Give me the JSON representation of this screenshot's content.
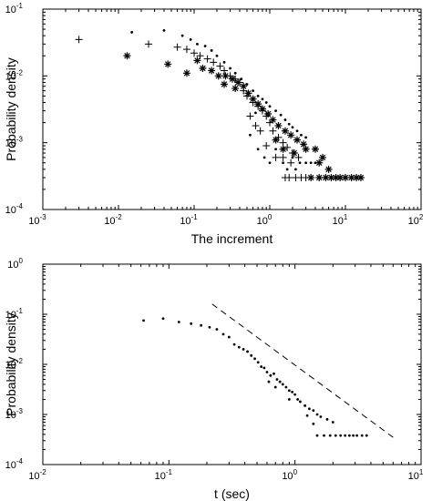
{
  "chart_data": [
    {
      "type": "scatter",
      "xlabel": "The increment",
      "ylabel": "Probability density",
      "xscale": "log",
      "yscale": "log",
      "xlim": [
        0.001,
        100
      ],
      "ylim": [
        0.0001,
        0.1
      ],
      "x_ticks": [
        {
          "value": 0.001,
          "base": "10",
          "exp": "-3"
        },
        {
          "value": 0.01,
          "base": "10",
          "exp": "-2"
        },
        {
          "value": 0.1,
          "base": "10",
          "exp": "-1"
        },
        {
          "value": 1,
          "base": "10",
          "exp": "0"
        },
        {
          "value": 10,
          "base": "10",
          "exp": "1"
        },
        {
          "value": 100,
          "base": "10",
          "exp": "2"
        }
      ],
      "y_ticks": [
        {
          "value": 0.0001,
          "base": "10",
          "exp": "-4"
        },
        {
          "value": 0.001,
          "base": "10",
          "exp": "-3"
        },
        {
          "value": 0.01,
          "base": "10",
          "exp": "-2"
        },
        {
          "value": 0.1,
          "base": "10",
          "exp": "-1"
        }
      ],
      "series": [
        {
          "marker": "dot",
          "points": [
            [
              0.015,
              0.045
            ],
            [
              0.04,
              0.048
            ],
            [
              0.07,
              0.04
            ],
            [
              0.09,
              0.035
            ],
            [
              0.11,
              0.03
            ],
            [
              0.14,
              0.028
            ],
            [
              0.17,
              0.024
            ],
            [
              0.2,
              0.02
            ],
            [
              0.25,
              0.016
            ],
            [
              0.3,
              0.013
            ],
            [
              0.35,
              0.011
            ],
            [
              0.42,
              0.009
            ],
            [
              0.5,
              0.0075
            ],
            [
              0.6,
              0.006
            ],
            [
              0.7,
              0.005
            ],
            [
              0.8,
              0.0045
            ],
            [
              0.9,
              0.004
            ],
            [
              1.0,
              0.0035
            ],
            [
              1.2,
              0.003
            ],
            [
              1.4,
              0.0026
            ],
            [
              1.6,
              0.0022
            ],
            [
              1.8,
              0.0019
            ],
            [
              2.0,
              0.0017
            ],
            [
              2.3,
              0.0015
            ],
            [
              2.6,
              0.0013
            ],
            [
              3.0,
              0.0012
            ],
            [
              0.55,
              0.0013
            ],
            [
              0.7,
              0.0008
            ],
            [
              0.85,
              0.0006
            ],
            [
              1.0,
              0.0005
            ],
            [
              1.2,
              0.0008
            ],
            [
              1.5,
              0.0005
            ],
            [
              1.7,
              0.0004
            ],
            [
              2.0,
              0.0006
            ],
            [
              2.5,
              0.0005
            ],
            [
              3.0,
              0.0005
            ],
            [
              3.5,
              0.0005
            ],
            [
              4.0,
              0.0005
            ],
            [
              2.2,
              0.0004
            ],
            [
              0.65,
              0.0028
            ]
          ]
        },
        {
          "marker": "plus",
          "points": [
            [
              0.003,
              0.035
            ],
            [
              0.025,
              0.03
            ],
            [
              0.06,
              0.027
            ],
            [
              0.08,
              0.025
            ],
            [
              0.1,
              0.022
            ],
            [
              0.12,
              0.02
            ],
            [
              0.15,
              0.018
            ],
            [
              0.18,
              0.016
            ],
            [
              0.22,
              0.014
            ],
            [
              0.25,
              0.012
            ],
            [
              0.3,
              0.01
            ],
            [
              0.35,
              0.009
            ],
            [
              0.4,
              0.008
            ],
            [
              0.45,
              0.006
            ],
            [
              0.5,
              0.005
            ],
            [
              0.6,
              0.004
            ],
            [
              0.7,
              0.0035
            ],
            [
              0.8,
              0.003
            ],
            [
              0.9,
              0.0025
            ],
            [
              1.0,
              0.002
            ],
            [
              0.55,
              0.0025
            ],
            [
              0.65,
              0.0018
            ],
            [
              0.75,
              0.0015
            ],
            [
              1.1,
              0.0015
            ],
            [
              1.3,
              0.0012
            ],
            [
              1.5,
              0.001
            ],
            [
              1.7,
              0.00085
            ],
            [
              2.0,
              0.0007
            ],
            [
              2.4,
              0.0006
            ],
            [
              1.2,
              0.0006
            ],
            [
              1.5,
              0.0006
            ],
            [
              1.9,
              0.0005
            ],
            [
              1.6,
              0.0003
            ],
            [
              1.8,
              0.0003
            ],
            [
              2.2,
              0.0003
            ],
            [
              2.6,
              0.0003
            ],
            [
              3.0,
              0.0003
            ],
            [
              0.9,
              0.0009
            ]
          ]
        },
        {
          "marker": "star",
          "points": [
            [
              0.013,
              0.02
            ],
            [
              0.045,
              0.015
            ],
            [
              0.11,
              0.017
            ],
            [
              0.13,
              0.013
            ],
            [
              0.17,
              0.012
            ],
            [
              0.21,
              0.01
            ],
            [
              0.26,
              0.01
            ],
            [
              0.32,
              0.009
            ],
            [
              0.38,
              0.008
            ],
            [
              0.45,
              0.007
            ],
            [
              0.52,
              0.0055
            ],
            [
              0.6,
              0.0045
            ],
            [
              0.7,
              0.0038
            ],
            [
              0.8,
              0.0032
            ],
            [
              0.95,
              0.0027
            ],
            [
              1.1,
              0.0022
            ],
            [
              1.3,
              0.0018
            ],
            [
              1.6,
              0.0015
            ],
            [
              1.9,
              0.0013
            ],
            [
              2.3,
              0.0011
            ],
            [
              2.8,
              0.00095
            ],
            [
              1.5,
              0.0008
            ],
            [
              2.1,
              0.0007
            ],
            [
              3.0,
              0.0008
            ],
            [
              4.0,
              0.0008
            ],
            [
              5.0,
              0.0006
            ],
            [
              4.5,
              0.0005
            ],
            [
              6.0,
              0.0004
            ],
            [
              3.5,
              0.0003
            ],
            [
              4.5,
              0.0003
            ],
            [
              5.5,
              0.0003
            ],
            [
              6.5,
              0.0003
            ],
            [
              7.5,
              0.0003
            ],
            [
              8.5,
              0.0003
            ],
            [
              10.0,
              0.0003
            ],
            [
              12.0,
              0.0003
            ],
            [
              14.0,
              0.0003
            ],
            [
              16.0,
              0.0003
            ],
            [
              0.35,
              0.0065
            ],
            [
              1.2,
              0.0011
            ],
            [
              0.08,
              0.011
            ],
            [
              0.25,
              0.0075
            ]
          ]
        }
      ]
    },
    {
      "type": "scatter",
      "xlabel": "t (sec)",
      "ylabel": "Probability density",
      "xscale": "log",
      "yscale": "log",
      "xlim": [
        0.01,
        10
      ],
      "ylim": [
        0.0001,
        1
      ],
      "x_ticks": [
        {
          "value": 0.01,
          "base": "10",
          "exp": "-2"
        },
        {
          "value": 0.1,
          "base": "10",
          "exp": "-1"
        },
        {
          "value": 1,
          "base": "10",
          "exp": "0"
        },
        {
          "value": 10,
          "base": "10",
          "exp": "1"
        }
      ],
      "y_ticks": [
        {
          "value": 0.0001,
          "base": "10",
          "exp": "-4"
        },
        {
          "value": 0.001,
          "base": "10",
          "exp": "-3"
        },
        {
          "value": 0.01,
          "base": "10",
          "exp": "-2"
        },
        {
          "value": 0.1,
          "base": "10",
          "exp": "-1"
        },
        {
          "value": 1,
          "base": "10",
          "exp": "0"
        }
      ],
      "series": [
        {
          "marker": "dot",
          "points": [
            [
              0.063,
              0.075
            ],
            [
              0.09,
              0.082
            ],
            [
              0.12,
              0.07
            ],
            [
              0.15,
              0.065
            ],
            [
              0.18,
              0.06
            ],
            [
              0.21,
              0.055
            ],
            [
              0.24,
              0.05
            ],
            [
              0.27,
              0.04
            ],
            [
              0.3,
              0.035
            ],
            [
              0.33,
              0.025
            ],
            [
              0.36,
              0.022
            ],
            [
              0.39,
              0.02
            ],
            [
              0.42,
              0.018
            ],
            [
              0.45,
              0.015
            ],
            [
              0.48,
              0.013
            ],
            [
              0.51,
              0.011
            ],
            [
              0.54,
              0.009
            ],
            [
              0.57,
              0.0085
            ],
            [
              0.6,
              0.007
            ],
            [
              0.64,
              0.006
            ],
            [
              0.68,
              0.0065
            ],
            [
              0.72,
              0.005
            ],
            [
              0.76,
              0.0045
            ],
            [
              0.8,
              0.004
            ],
            [
              0.85,
              0.0035
            ],
            [
              0.9,
              0.003
            ],
            [
              0.95,
              0.0028
            ],
            [
              1.0,
              0.0025
            ],
            [
              1.05,
              0.002
            ],
            [
              1.1,
              0.0018
            ],
            [
              1.2,
              0.0015
            ],
            [
              1.3,
              0.0013
            ],
            [
              1.4,
              0.0012
            ],
            [
              1.5,
              0.001
            ],
            [
              1.6,
              0.0009
            ],
            [
              1.8,
              0.0008
            ],
            [
              2.0,
              0.0007
            ],
            [
              1.4,
              0.00065
            ],
            [
              0.7,
              0.0035
            ],
            [
              0.62,
              0.0045
            ],
            [
              0.9,
              0.002
            ],
            [
              1.25,
              0.00095
            ],
            [
              1.5,
              0.00038
            ],
            [
              1.7,
              0.00038
            ],
            [
              1.9,
              0.00038
            ],
            [
              2.1,
              0.00038
            ],
            [
              2.3,
              0.00038
            ],
            [
              2.5,
              0.00038
            ],
            [
              2.7,
              0.00038
            ],
            [
              2.9,
              0.00038
            ],
            [
              3.1,
              0.00038
            ],
            [
              3.4,
              0.00038
            ],
            [
              3.7,
              0.00038
            ]
          ]
        },
        {
          "marker": "dashed-line",
          "points": [
            [
              0.22,
              0.16
            ],
            [
              6.0,
              0.00035
            ]
          ]
        }
      ]
    }
  ]
}
